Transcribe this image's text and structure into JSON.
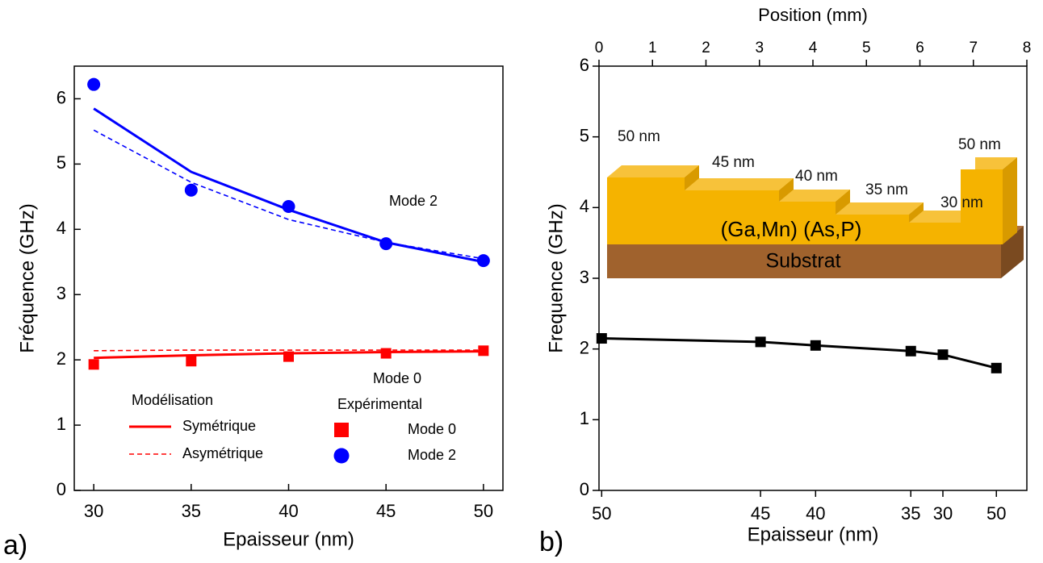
{
  "chart_data": [
    {
      "type": "line",
      "panel_label": "a)",
      "xlabel": "Epaisseur (nm)",
      "ylabel": "Fréquence (GHz)",
      "x": [
        30,
        35,
        40,
        45,
        50
      ],
      "xlim": [
        29,
        51
      ],
      "xticks": [
        30,
        35,
        40,
        45,
        50
      ],
      "ylim": [
        0,
        6.5
      ],
      "yticks": [
        0,
        1,
        2,
        3,
        4,
        5,
        6
      ],
      "legend_titles": [
        "Modélisation",
        "Expérimental"
      ],
      "annotations": [
        "Mode 2",
        "Mode 0"
      ],
      "series": [
        {
          "name": "Symétrique",
          "kind": "line",
          "style": "solid",
          "color": "#ff0000",
          "values": [
            2.03,
            2.07,
            2.1,
            2.12,
            2.13
          ]
        },
        {
          "name": "Asymétrique",
          "kind": "line",
          "style": "dashed",
          "color": "#ff0000",
          "values": [
            2.14,
            2.15,
            2.15,
            2.15,
            2.15
          ]
        },
        {
          "kind": "line",
          "style": "solid",
          "color": "#0000ff",
          "values": [
            5.85,
            4.88,
            4.3,
            3.8,
            3.5
          ]
        },
        {
          "kind": "line",
          "style": "dashed",
          "color": "#0000ff",
          "values": [
            5.52,
            4.72,
            4.15,
            3.8,
            3.55
          ]
        },
        {
          "name": "Mode 0",
          "kind": "scatter",
          "style": "square",
          "color": "#ff0000",
          "values": [
            1.93,
            1.98,
            2.05,
            2.1,
            2.14
          ]
        },
        {
          "name": "Mode 2",
          "kind": "scatter",
          "style": "circle",
          "color": "#0000ff",
          "values": [
            6.22,
            4.6,
            4.35,
            3.78,
            3.52
          ]
        }
      ]
    },
    {
      "type": "line",
      "panel_label": "b)",
      "xlabel": "Epaisseur (nm)",
      "xlabel_top": "Position (mm)",
      "ylabel": "Frequence (GHz)",
      "x": [
        0.05,
        3.02,
        4.05,
        5.83,
        6.43,
        7.43
      ],
      "xlim": [
        0,
        8
      ],
      "xticks": [
        0,
        1,
        2,
        3,
        4,
        5,
        6,
        7,
        8
      ],
      "xticks_bottom": [
        {
          "value": 0.05,
          "label": "50"
        },
        {
          "value": 3.02,
          "label": "45"
        },
        {
          "value": 4.05,
          "label": "40"
        },
        {
          "value": 5.83,
          "label": "35"
        },
        {
          "value": 6.43,
          "label": "30"
        },
        {
          "value": 7.43,
          "label": "50"
        }
      ],
      "ylim": [
        0,
        6
      ],
      "yticks": [
        0,
        1,
        2,
        3,
        4,
        5,
        6
      ],
      "inset": {
        "steps": [
          "50 nm",
          "45 nm",
          "40 nm",
          "35 nm",
          "30 nm",
          "50 nm"
        ],
        "layer": "(Ga,Mn) (As,P)",
        "substrate": "Substrat"
      },
      "series": [
        {
          "kind": "line",
          "style": "solid",
          "marker": "square",
          "color": "#000000",
          "values": [
            2.15,
            2.1,
            2.05,
            1.97,
            1.92,
            1.73
          ]
        }
      ]
    }
  ]
}
